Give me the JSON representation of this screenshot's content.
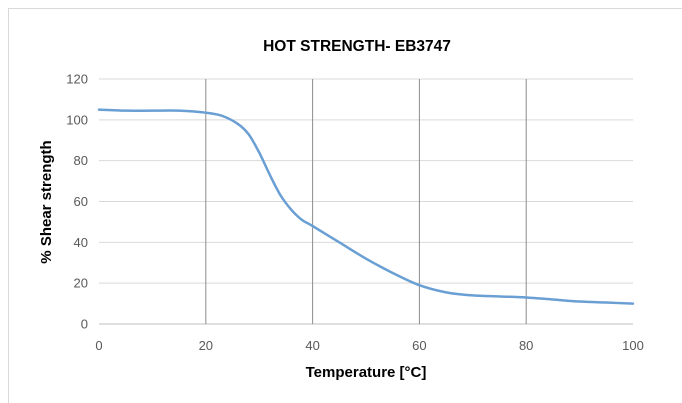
{
  "chart_data": {
    "type": "line",
    "title": "HOT STRENGTH- EB3747",
    "xlabel": "Temperature [°C]",
    "ylabel": "% Shear strength",
    "xlim": [
      0,
      100
    ],
    "ylim": [
      0,
      120
    ],
    "xticks": [
      0,
      20,
      40,
      60,
      80,
      100
    ],
    "yticks": [
      0,
      20,
      40,
      60,
      80,
      100,
      120
    ],
    "vertical_grid": true,
    "horizontal_grid": true,
    "legend": "none",
    "series": [
      {
        "color": "#6a9fd4",
        "x": [
          0,
          5,
          10,
          15,
          20,
          23,
          26,
          28,
          30,
          32,
          34,
          36,
          38,
          40,
          45,
          50,
          55,
          60,
          65,
          70,
          75,
          80,
          85,
          90,
          95,
          100
        ],
        "y": [
          105,
          104.5,
          104.5,
          104.5,
          103.5,
          102,
          98,
          93,
          84,
          73,
          63,
          56,
          51,
          48,
          40,
          32,
          25,
          19,
          15.5,
          14,
          13.5,
          13,
          12,
          11,
          10.5,
          10
        ]
      }
    ]
  }
}
